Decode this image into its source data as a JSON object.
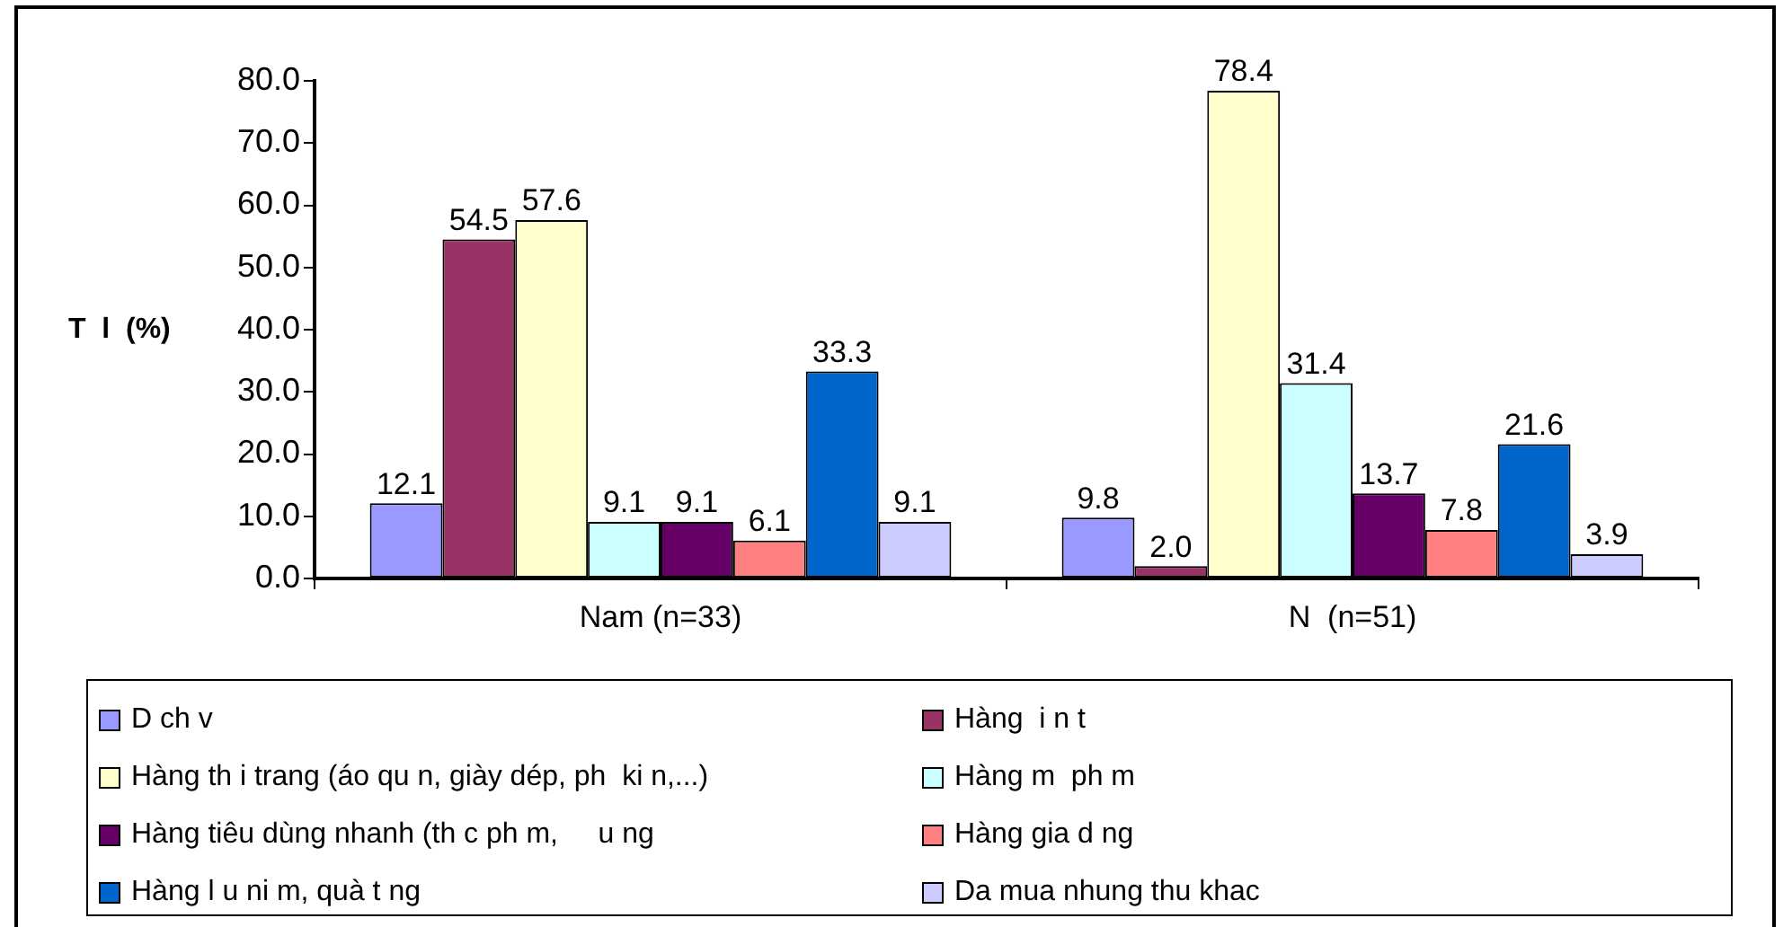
{
  "chart_data": {
    "type": "bar",
    "ylabel": "T  l  (%)",
    "categories": [
      "Nam (n=33)",
      "N  (n=51)"
    ],
    "series": [
      {
        "name": "D ch v",
        "color": "#9999ff",
        "values": [
          12.1,
          9.8
        ],
        "value_labels": [
          "12.1",
          "9.8"
        ]
      },
      {
        "name": "Hàng  i n t",
        "color": "#993366",
        "values": [
          54.5,
          2.0
        ],
        "value_labels": [
          "54.5",
          "2.0"
        ]
      },
      {
        "name": "Hàng th i trang (áo qu n, giày dép, ph  ki n,...)",
        "color": "#ffffcc",
        "values": [
          57.6,
          78.4
        ],
        "value_labels": [
          "57.6",
          "78.4"
        ]
      },
      {
        "name": "Hàng m  ph m",
        "color": "#ccffff",
        "values": [
          9.1,
          31.4
        ],
        "value_labels": [
          "9.1",
          "31.4"
        ]
      },
      {
        "name": "Hàng tiêu dùng nhanh (th c ph m,     u ng",
        "color": "#660066",
        "values": [
          9.1,
          13.7
        ],
        "value_labels": [
          "9.1",
          "13.7"
        ]
      },
      {
        "name": "Hàng gia d ng",
        "color": "#ff8080",
        "values": [
          6.1,
          7.8
        ],
        "value_labels": [
          "6.1",
          "7.8"
        ]
      },
      {
        "name": "Hàng l u ni m, quà t ng",
        "color": "#0066cc",
        "values": [
          33.3,
          21.6
        ],
        "value_labels": [
          "33.3",
          "21.6"
        ]
      },
      {
        "name": "Da mua nhung thu khac",
        "color": "#ccccff",
        "values": [
          9.1,
          3.9
        ],
        "value_labels": [
          "9.1",
          "3.9"
        ]
      }
    ],
    "ylim": [
      0,
      80
    ],
    "yticks": [
      {
        "value": 0,
        "label": "0.0"
      },
      {
        "value": 10,
        "label": "10.0"
      },
      {
        "value": 20,
        "label": "20.0"
      },
      {
        "value": 30,
        "label": "30.0"
      },
      {
        "value": 40,
        "label": "40.0"
      },
      {
        "value": 50,
        "label": "50.0"
      },
      {
        "value": 60,
        "label": "60.0"
      },
      {
        "value": 70,
        "label": "70.0"
      },
      {
        "value": 80,
        "label": "80.0"
      }
    ],
    "legend": "bottom"
  }
}
